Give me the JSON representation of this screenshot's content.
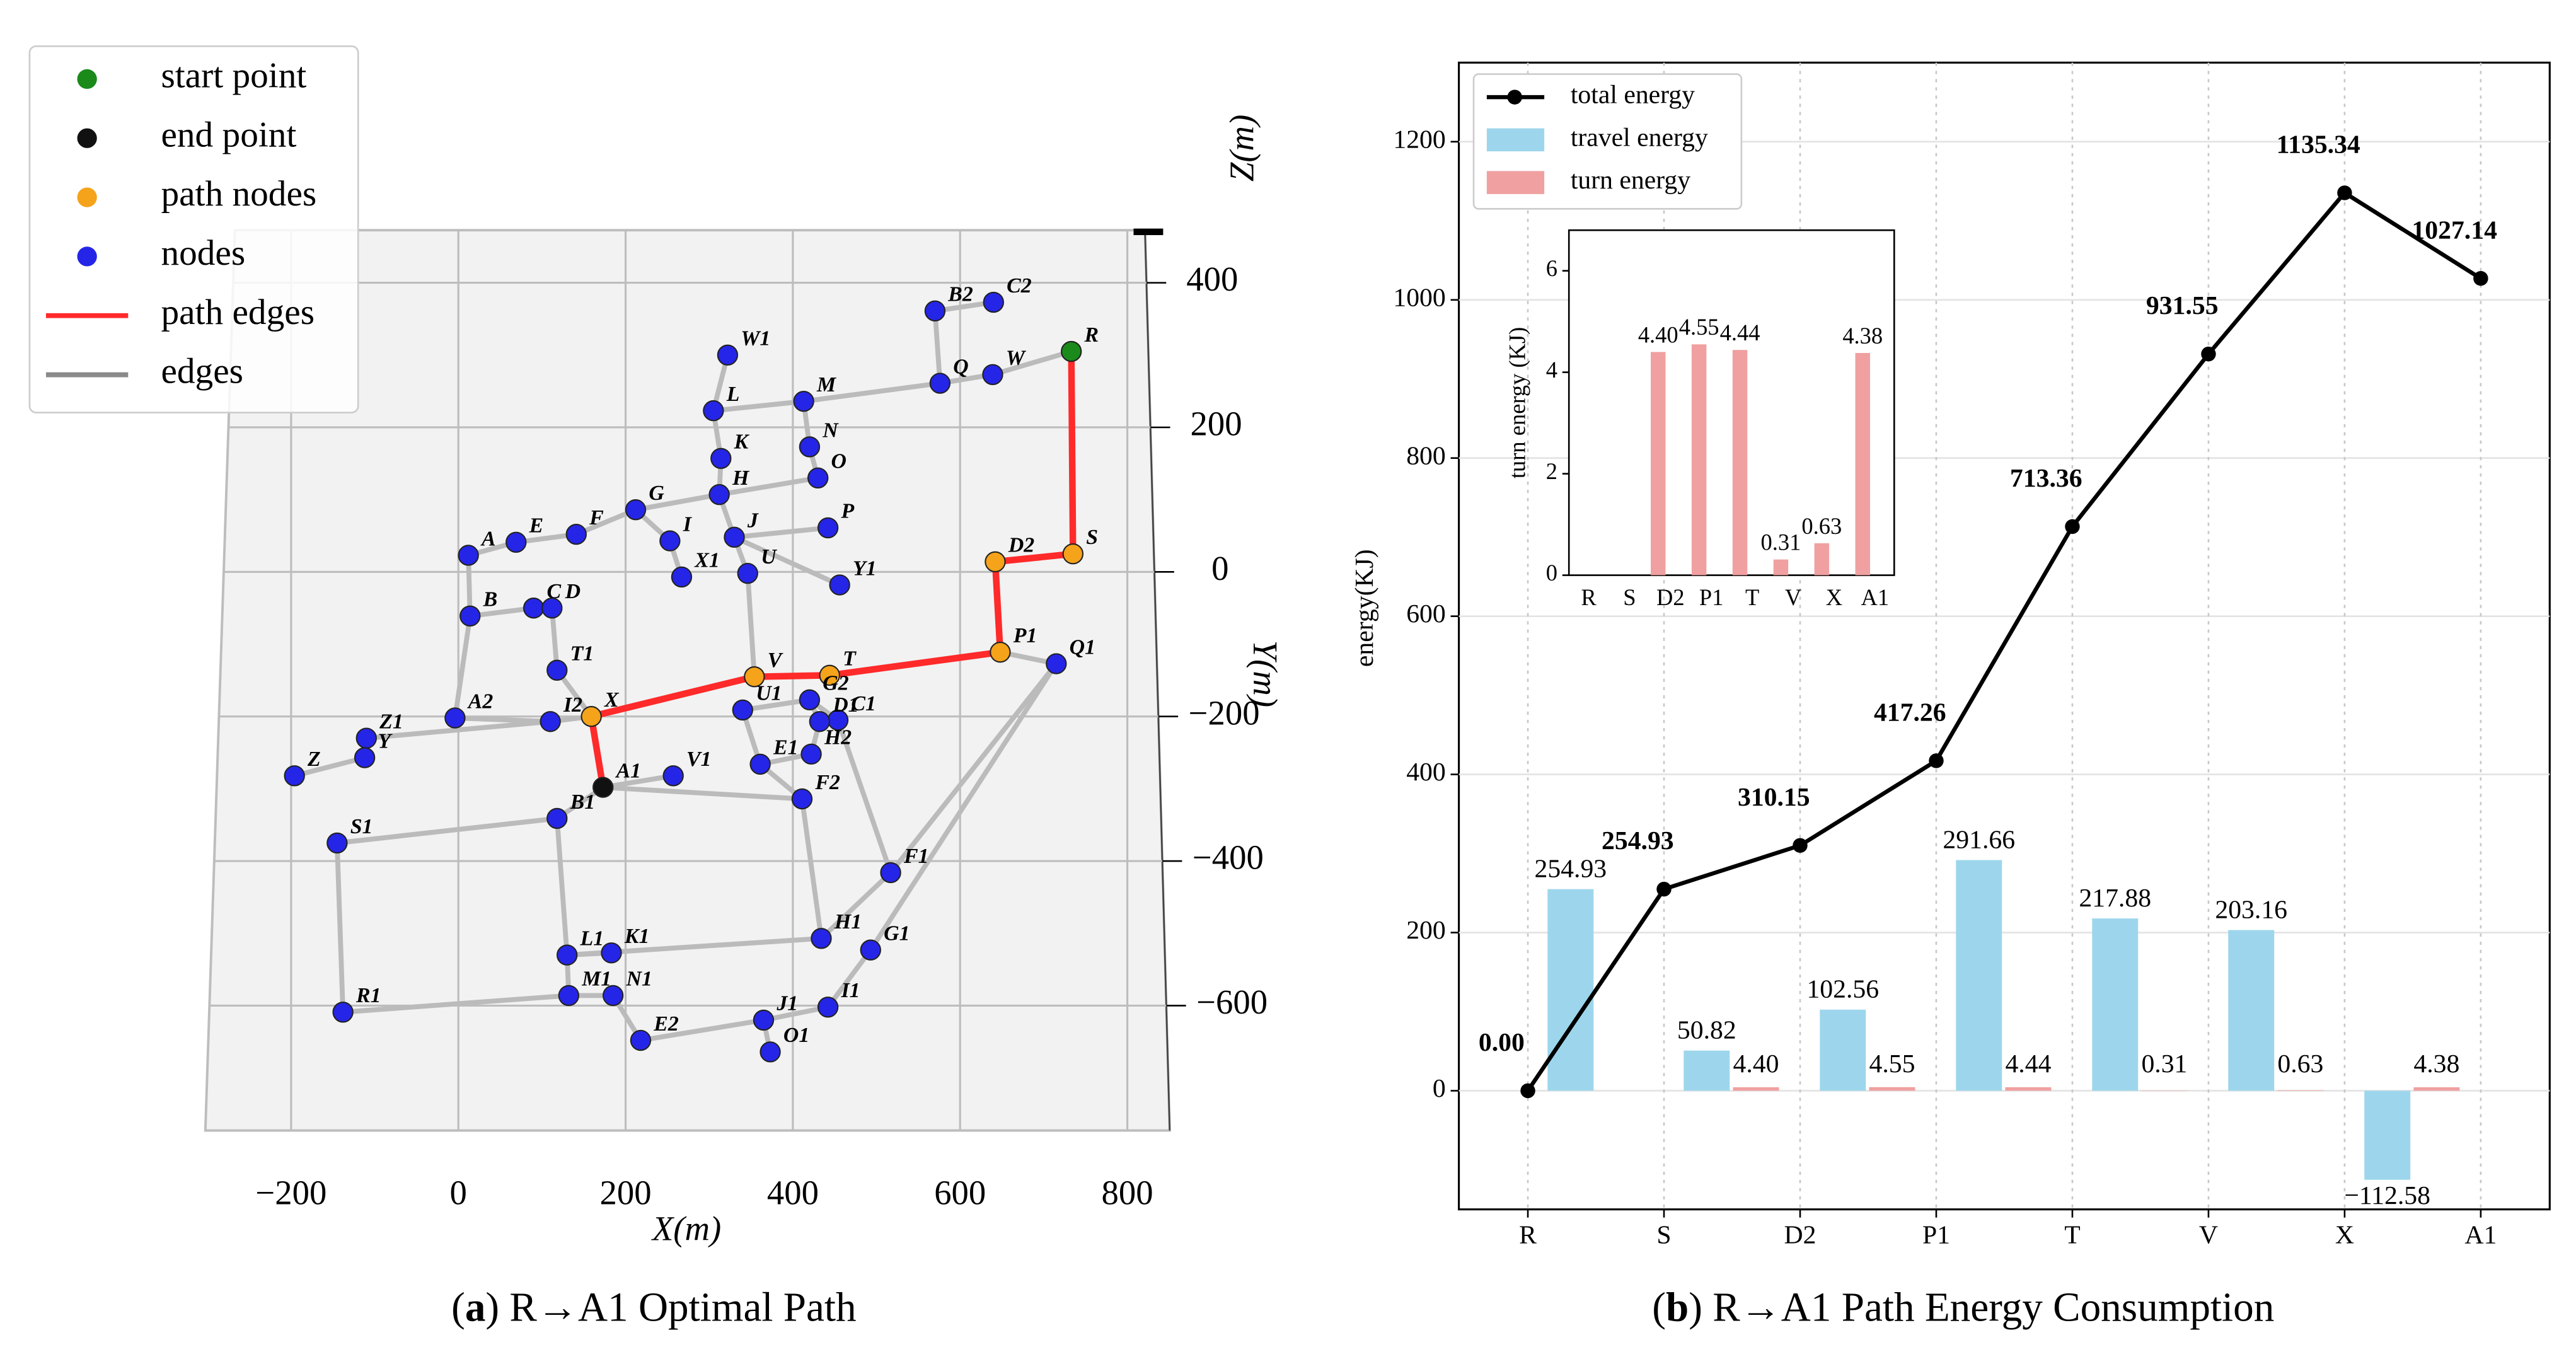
{
  "chart_data": [
    {
      "type": "graph",
      "caption": {
        "open": "(",
        "label": "a",
        "text": ") R→A1 Optimal Path"
      },
      "xlabel": "X(m)",
      "ylabel": "Y(m)",
      "zlabel": "Z(m)",
      "xticks": [
        {
          "value": -200,
          "label": "−200"
        },
        0,
        200,
        400,
        600,
        800
      ],
      "yticks": [
        400,
        200,
        0,
        {
          "value": -200,
          "label": "−200"
        },
        {
          "value": -400,
          "label": "−400"
        },
        {
          "value": -600,
          "label": "−600"
        }
      ],
      "legend": [
        {
          "name": "start point",
          "color": "#1a8a1a"
        },
        {
          "name": "end point",
          "color": "#111111"
        },
        {
          "name": "path nodes",
          "color": "#f5a31a"
        },
        {
          "name": "nodes",
          "color": "#2525e8"
        },
        {
          "name": "path edges",
          "color": "#ff2a2a"
        },
        {
          "name": "edges",
          "color": "#8a8a8a"
        }
      ],
      "start": "R",
      "end": "A1",
      "path": [
        "R",
        "S",
        "D2",
        "P1",
        "T",
        "V",
        "X",
        "A1"
      ],
      "nodes": [
        {
          "label": "R",
          "x": 733,
          "y": 305
        },
        {
          "label": "S",
          "x": 735,
          "y": 25
        },
        {
          "label": "D2",
          "x": 642,
          "y": 14
        },
        {
          "label": "P1",
          "x": 648,
          "y": -111
        },
        {
          "label": "Q1",
          "x": 715,
          "y": -127
        },
        {
          "label": "T",
          "x": 444,
          "y": -143
        },
        {
          "label": "V",
          "x": 354,
          "y": -145
        },
        {
          "label": "G2",
          "x": 420,
          "y": -177
        },
        {
          "label": "X",
          "x": 159,
          "y": -200
        },
        {
          "label": "A1",
          "x": 173,
          "y": -298
        },
        {
          "label": "B2",
          "x": 570,
          "y": 361
        },
        {
          "label": "C2",
          "x": 640,
          "y": 373
        },
        {
          "label": "Q",
          "x": 576,
          "y": 261
        },
        {
          "label": "W",
          "x": 639,
          "y": 273
        },
        {
          "label": "W1",
          "x": 322,
          "y": 300
        },
        {
          "label": "L",
          "x": 305,
          "y": 223
        },
        {
          "label": "M",
          "x": 413,
          "y": 236
        },
        {
          "label": "K",
          "x": 314,
          "y": 157
        },
        {
          "label": "N",
          "x": 420,
          "y": 173
        },
        {
          "label": "O",
          "x": 430,
          "y": 130
        },
        {
          "label": "H",
          "x": 312,
          "y": 107
        },
        {
          "label": "G",
          "x": 212,
          "y": 86
        },
        {
          "label": "P",
          "x": 442,
          "y": 61
        },
        {
          "label": "J",
          "x": 330,
          "y": 48
        },
        {
          "label": "I",
          "x": 253,
          "y": 43
        },
        {
          "label": "F",
          "x": 141,
          "y": 52
        },
        {
          "label": "E",
          "x": 69,
          "y": 41
        },
        {
          "label": "A",
          "x": 12,
          "y": 23
        },
        {
          "label": "X1",
          "x": 267,
          "y": -7
        },
        {
          "label": "U",
          "x": 346,
          "y": -2
        },
        {
          "label": "Y1",
          "x": 456,
          "y": -18
        },
        {
          "label": "B",
          "x": 14,
          "y": -61
        },
        {
          "label": "C",
          "x": 90,
          "y": -50
        },
        {
          "label": "D",
          "x": 112,
          "y": -50
        },
        {
          "label": "T1",
          "x": 118,
          "y": -136
        },
        {
          "label": "U1",
          "x": 340,
          "y": -191
        },
        {
          "label": "C1",
          "x": 454,
          "y": -205
        },
        {
          "label": "D1",
          "x": 432,
          "y": -207
        },
        {
          "label": "A2",
          "x": -4,
          "y": -202
        },
        {
          "label": "I2",
          "x": 110,
          "y": -207
        },
        {
          "label": "Z1",
          "x": -110,
          "y": -230
        },
        {
          "label": "Y",
          "x": -112,
          "y": -257
        },
        {
          "label": "Z",
          "x": -196,
          "y": -282
        },
        {
          "label": "H2",
          "x": 422,
          "y": -252
        },
        {
          "label": "E1",
          "x": 361,
          "y": -266
        },
        {
          "label": "V1",
          "x": 257,
          "y": -282
        },
        {
          "label": "F2",
          "x": 411,
          "y": -314
        },
        {
          "label": "B1",
          "x": 118,
          "y": -341
        },
        {
          "label": "S1",
          "x": -145,
          "y": -375
        },
        {
          "label": "F1",
          "x": 517,
          "y": -416
        },
        {
          "label": "H1",
          "x": 434,
          "y": -507
        },
        {
          "label": "G1",
          "x": 493,
          "y": -523
        },
        {
          "label": "L1",
          "x": 130,
          "y": -530
        },
        {
          "label": "K1",
          "x": 183,
          "y": -527
        },
        {
          "label": "M1",
          "x": 132,
          "y": -586
        },
        {
          "label": "N1",
          "x": 185,
          "y": -586
        },
        {
          "label": "I1",
          "x": 442,
          "y": -602
        },
        {
          "label": "R1",
          "x": -138,
          "y": -609
        },
        {
          "label": "J1",
          "x": 365,
          "y": -620
        },
        {
          "label": "E2",
          "x": 218,
          "y": -648
        },
        {
          "label": "O1",
          "x": 373,
          "y": -664
        }
      ],
      "edges": [
        [
          "B2",
          "Q"
        ],
        [
          "Q",
          "M"
        ],
        [
          "Q",
          "W"
        ],
        [
          "W",
          "R"
        ],
        [
          "B2",
          "C2"
        ],
        [
          "W1",
          "L"
        ],
        [
          "L",
          "M"
        ],
        [
          "L",
          "K"
        ],
        [
          "K",
          "H"
        ],
        [
          "M",
          "N"
        ],
        [
          "N",
          "O"
        ],
        [
          "O",
          "H"
        ],
        [
          "H",
          "G"
        ],
        [
          "G",
          "I"
        ],
        [
          "H",
          "J"
        ],
        [
          "J",
          "P"
        ],
        [
          "J",
          "U"
        ],
        [
          "U",
          "V"
        ],
        [
          "J",
          "Y1"
        ],
        [
          "I",
          "X1"
        ],
        [
          "F",
          "G"
        ],
        [
          "E",
          "F"
        ],
        [
          "A",
          "E"
        ],
        [
          "A",
          "B"
        ],
        [
          "B",
          "C"
        ],
        [
          "C",
          "D"
        ],
        [
          "D",
          "T1"
        ],
        [
          "T1",
          "X"
        ],
        [
          "B",
          "A2"
        ],
        [
          "A2",
          "I2"
        ],
        [
          "I2",
          "X"
        ],
        [
          "Z1",
          "I2"
        ],
        [
          "Z",
          "Y"
        ],
        [
          "Y",
          "Z1"
        ],
        [
          "G2",
          "U1"
        ],
        [
          "G2",
          "C1"
        ],
        [
          "G2",
          "D1"
        ],
        [
          "D1",
          "H2"
        ],
        [
          "H2",
          "E1"
        ],
        [
          "U1",
          "E1"
        ],
        [
          "A1",
          "F2"
        ],
        [
          "V1",
          "A1"
        ],
        [
          "A1",
          "B1"
        ],
        [
          "B1",
          "S1"
        ],
        [
          "S1",
          "R1"
        ],
        [
          "R1",
          "M1"
        ],
        [
          "M1",
          "N1"
        ],
        [
          "N1",
          "E2"
        ],
        [
          "E2",
          "J1"
        ],
        [
          "J1",
          "I1"
        ],
        [
          "J1",
          "O1"
        ],
        [
          "I1",
          "G1"
        ],
        [
          "G1",
          "Q1"
        ],
        [
          "F1",
          "Q1"
        ],
        [
          "F1",
          "H1"
        ],
        [
          "H1",
          "L1"
        ],
        [
          "L1",
          "K1"
        ],
        [
          "L1",
          "B1"
        ],
        [
          "H1",
          "F2"
        ],
        [
          "C1",
          "F1"
        ],
        [
          "F2",
          "E1"
        ],
        [
          "M1",
          "L1"
        ],
        [
          "Q1",
          "P1"
        ]
      ]
    },
    {
      "type": "bar_line",
      "caption": {
        "open": "(",
        "label": "b",
        "text": ") R→A1 Path Energy Consumption"
      },
      "ylabel": "energy(KJ)",
      "categories": [
        "R",
        "S",
        "D2",
        "P1",
        "T",
        "V",
        "X",
        "A1"
      ],
      "ylim": [
        -150,
        1300
      ],
      "yticks": [
        0,
        200,
        400,
        600,
        800,
        1000,
        1200
      ],
      "grid": true,
      "legend": "upper left",
      "series": [
        {
          "name": "total energy",
          "type": "line",
          "color": "#000000",
          "values": [
            0,
            254.93,
            310.15,
            417.26,
            713.36,
            931.55,
            1135.34,
            1027.14
          ],
          "value_labels": [
            "0.00",
            "254.93",
            "310.15",
            "417.26",
            "713.36",
            "931.55",
            "1135.34",
            "1027.14"
          ]
        },
        {
          "name": "travel energy",
          "type": "bar",
          "color": "#9dd6ec",
          "values": [
            254.93,
            50.82,
            102.56,
            291.66,
            217.88,
            203.16,
            -112.58,
            null
          ],
          "value_labels": [
            "254.93",
            "50.82",
            "102.56",
            "291.66",
            "217.88",
            "203.16",
            "−112.58",
            null
          ]
        },
        {
          "name": "turn energy",
          "type": "bar",
          "color": "#f0a0a0",
          "values": [
            null,
            4.4,
            4.55,
            4.44,
            0.31,
            0.63,
            4.38,
            null
          ],
          "value_labels": [
            null,
            "4.40",
            "4.55",
            "4.44",
            "0.31",
            "0.63",
            "4.38",
            null
          ]
        }
      ]
    },
    {
      "type": "bar",
      "ylabel": "turn energy (KJ)",
      "categories": [
        "R",
        "S",
        "D2",
        "P1",
        "T",
        "V",
        "X",
        "A1"
      ],
      "ylim": [
        0,
        6.8
      ],
      "yticks": [
        0,
        2,
        4,
        6
      ],
      "color": "#f0a0a0",
      "values": [
        null,
        null,
        4.4,
        4.55,
        4.44,
        0.31,
        0.63,
        4.38
      ],
      "value_labels": [
        null,
        null,
        "4.40",
        "4.55",
        "4.44",
        "0.31",
        "0.63",
        "4.38"
      ]
    }
  ]
}
